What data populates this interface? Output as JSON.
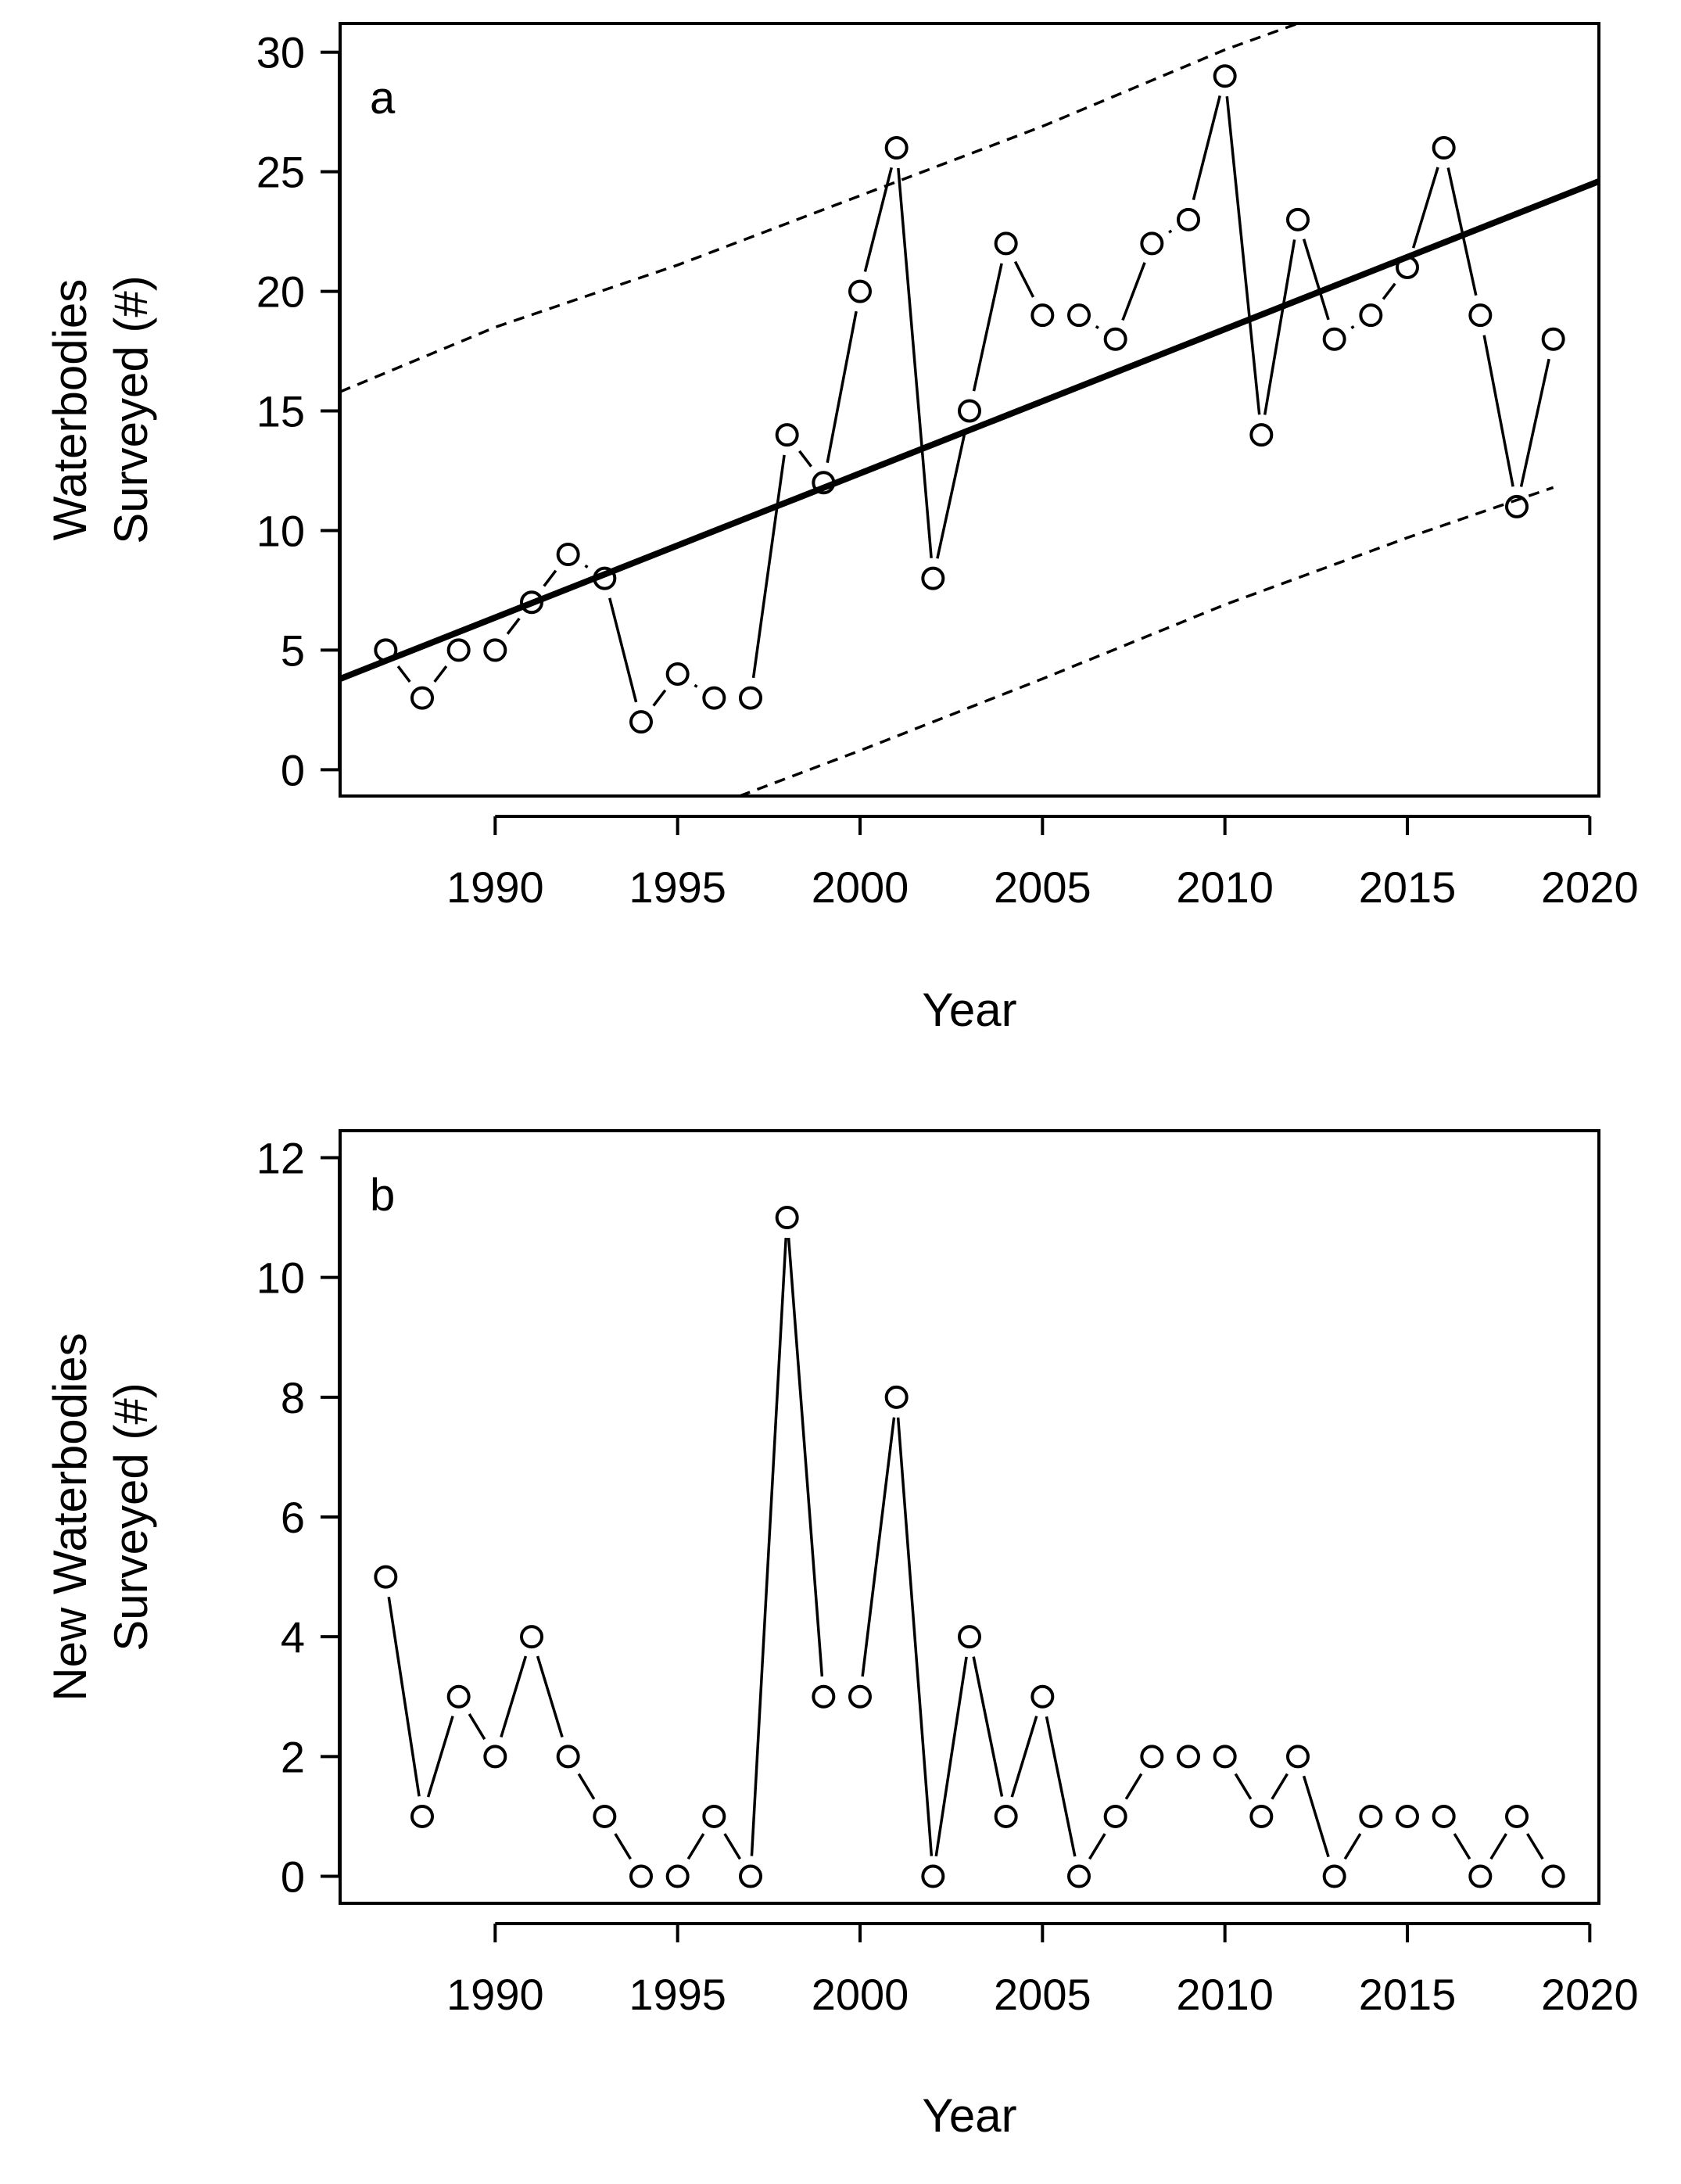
{
  "chart_data": [
    {
      "type": "scatter",
      "panel": "a",
      "title": "",
      "xlabel": "Year",
      "ylabel_lines": [
        "Waterbodies",
        "Surveyed (#)"
      ],
      "xlim": [
        1985.75,
        2020.25
      ],
      "ylim": [
        -1.1,
        31.2
      ],
      "xticks": [
        1990,
        1995,
        2000,
        2005,
        2010,
        2015,
        2020
      ],
      "yticks": [
        0,
        5,
        10,
        15,
        20,
        25,
        30
      ],
      "x": [
        1987,
        1988,
        1989,
        1990,
        1991,
        1992,
        1993,
        1994,
        1995,
        1996,
        1997,
        1998,
        1999,
        2000,
        2001,
        2002,
        2003,
        2004,
        2005,
        2006,
        2007,
        2008,
        2009,
        2010,
        2011,
        2012,
        2013,
        2014,
        2015,
        2016,
        2017,
        2018,
        2019
      ],
      "y": [
        5,
        3,
        5,
        5,
        7,
        9,
        8,
        2,
        4,
        3,
        3,
        14,
        12,
        20,
        26,
        8,
        15,
        22,
        19,
        19,
        18,
        22,
        23,
        29,
        14,
        23,
        18,
        19,
        21,
        26,
        19,
        11,
        18
      ],
      "fit_line": {
        "name": "Linear trend",
        "x": [
          1985.75,
          2020.25
        ],
        "y": [
          3.8,
          24.6
        ]
      },
      "prediction_interval_upper": {
        "name": "Upper prediction interval",
        "x": [
          1985.75,
          1990,
          1995,
          2000,
          2005,
          2010,
          2012
        ],
        "y": [
          15.8,
          18.5,
          21.1,
          24.0,
          26.9,
          30.1,
          31.2
        ]
      },
      "prediction_interval_lower": {
        "name": "Lower prediction interval",
        "x": [
          1996.7,
          2000,
          2005,
          2010,
          2015,
          2019
        ],
        "y": [
          -1.1,
          0.8,
          3.8,
          6.9,
          9.7,
          11.8
        ]
      }
    },
    {
      "type": "scatter",
      "panel": "b",
      "title": "",
      "xlabel": "Year",
      "ylabel_lines": [
        "New Waterbodies",
        "Surveyed (#)"
      ],
      "xlim": [
        1985.75,
        2020.25
      ],
      "ylim": [
        -0.45,
        12.45
      ],
      "xticks": [
        1990,
        1995,
        2000,
        2005,
        2010,
        2015,
        2020
      ],
      "yticks": [
        0,
        2,
        4,
        6,
        8,
        10,
        12
      ],
      "x": [
        1987,
        1988,
        1989,
        1990,
        1991,
        1992,
        1993,
        1994,
        1995,
        1996,
        1997,
        1998,
        1999,
        2000,
        2001,
        2002,
        2003,
        2004,
        2005,
        2006,
        2007,
        2008,
        2009,
        2010,
        2011,
        2012,
        2013,
        2014,
        2015,
        2016,
        2017,
        2018,
        2019
      ],
      "y": [
        5,
        1,
        3,
        2,
        4,
        2,
        1,
        0,
        0,
        1,
        0,
        11,
        3,
        3,
        8,
        0,
        4,
        1,
        3,
        0,
        1,
        2,
        2,
        2,
        1,
        2,
        0,
        1,
        1,
        1,
        0,
        1,
        0
      ]
    }
  ]
}
